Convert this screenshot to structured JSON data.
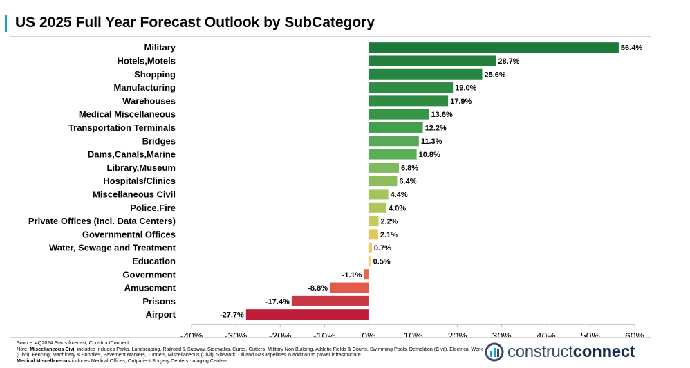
{
  "page": {
    "title": "US 2025 Full Year Forecast Outlook by SubCategory"
  },
  "chart_data": {
    "type": "bar",
    "orientation": "horizontal",
    "title": "US 2025 Full Year Forecast Outlook by SubCategory",
    "categories": [
      "Military",
      "Hotels,Motels",
      "Shopping",
      "Manufacturing",
      "Warehouses",
      "Medical Miscellaneous",
      "Transportation Terminals",
      "Bridges",
      "Dams,Canals,Marine",
      "Library,Museum",
      "Hospitals/Clinics",
      "Miscellaneous Civil",
      "Police,Fire",
      "Private Offices (Incl. Data Centers)",
      "Governmental Offices",
      "Water, Sewage and Treatment",
      "Education",
      "Government",
      "Amusement",
      "Prisons",
      "Airport"
    ],
    "values": [
      56.4,
      28.7,
      25.6,
      19.0,
      17.9,
      13.6,
      12.2,
      11.3,
      10.8,
      6.8,
      6.4,
      4.4,
      4.0,
      2.2,
      2.1,
      0.7,
      0.5,
      -1.1,
      -8.8,
      -17.4,
      -27.7
    ],
    "value_labels": [
      "56.4%",
      "28.7%",
      "25.6%",
      "19.0%",
      "17.9%",
      "13.6%",
      "12.2%",
      "11.3%",
      "10.8%",
      "6.8%",
      "6.4%",
      "4.4%",
      "4.0%",
      "2.2%",
      "2.1%",
      "0.7%",
      "0.5%",
      "-1.1%",
      "-8.8%",
      "-17.4%",
      "-27.7%"
    ],
    "colors": [
      "#1e7a3c",
      "#23803d",
      "#268540",
      "#2f8b43",
      "#2f8b43",
      "#379548",
      "#41a04e",
      "#57a957",
      "#5dad58",
      "#80b95f",
      "#8ebd5f",
      "#a3c55e",
      "#b0c65c",
      "#c8c958",
      "#e4c65a",
      "#f2c95c",
      "#f5d36a",
      "#e8674c",
      "#e25a4a",
      "#c93845",
      "#be1e3a"
    ],
    "xlim": [
      -40,
      60
    ],
    "xticks": [
      -40,
      -30,
      -20,
      -10,
      0,
      10,
      20,
      30,
      40,
      50,
      60
    ],
    "xtick_labels": [
      "-40%",
      "-30%",
      "-20%",
      "-10%",
      "0%",
      "10%",
      "20%",
      "30%",
      "40%",
      "50%",
      "60%"
    ],
    "xlabel": "",
    "ylabel": "",
    "grid": false,
    "legend": "none"
  },
  "footer": {
    "source": "Source: 4Q2024 Starts forecast, ConstructConnect",
    "note_prefix": "Note: ",
    "note_term": "Miscellaneous Civil",
    "note_text": " includes includes Parks, Landscaping, Railroad & Subway, Sidewalks, Curbs, Gutters, Military Non Building, Athletic Fields & Courts, Swimming Pools, Demolition (Civil), Electrical Work (Civil), Fencing, Machinery & Supplies, Pavement Markers, Tunnels, Miscellaneous (Civil), Sitework, Oil and Gas Pipelines in addition to power infrastructure",
    "medical_term": "Medical Miscellaneous",
    "medical_text": " includes Medical Offices, Outpatient Surgery Centers, Imaging Centers"
  },
  "logo": {
    "part1": "construct",
    "part2": "connect",
    "colors": {
      "light": "#3a4a63",
      "dark": "#1b2d4f",
      "accent": "#1f9bd7"
    }
  }
}
